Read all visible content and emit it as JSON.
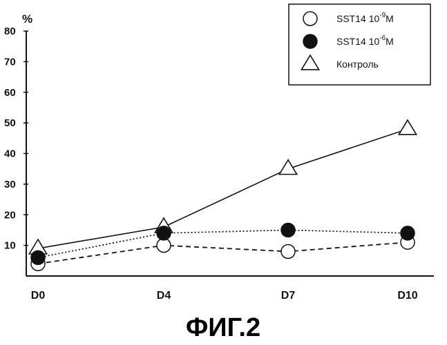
{
  "chart_data": {
    "type": "line",
    "title": "",
    "xlabel": "",
    "ylabel": "%",
    "caption": "ФИГ.2",
    "categories": [
      "D0",
      "D4",
      "D7",
      "D10"
    ],
    "ylim": [
      0,
      80
    ],
    "yticks": [
      10,
      20,
      30,
      40,
      50,
      60,
      70,
      80
    ],
    "grid": false,
    "legend_position": "top-right",
    "series": [
      {
        "name": "SST14 10",
        "exponent": "-9",
        "unit": "M",
        "marker": "circle-open",
        "line": "dashed",
        "values": [
          4,
          10,
          8,
          11
        ]
      },
      {
        "name": "SST14 10",
        "exponent": "-6",
        "unit": "M",
        "marker": "circle-filled",
        "line": "dotted",
        "values": [
          6,
          14,
          15,
          14
        ]
      },
      {
        "name": "Контроль",
        "exponent": "",
        "unit": "",
        "marker": "triangle-open",
        "line": "solid",
        "values": [
          9,
          16,
          35,
          48
        ]
      }
    ]
  }
}
